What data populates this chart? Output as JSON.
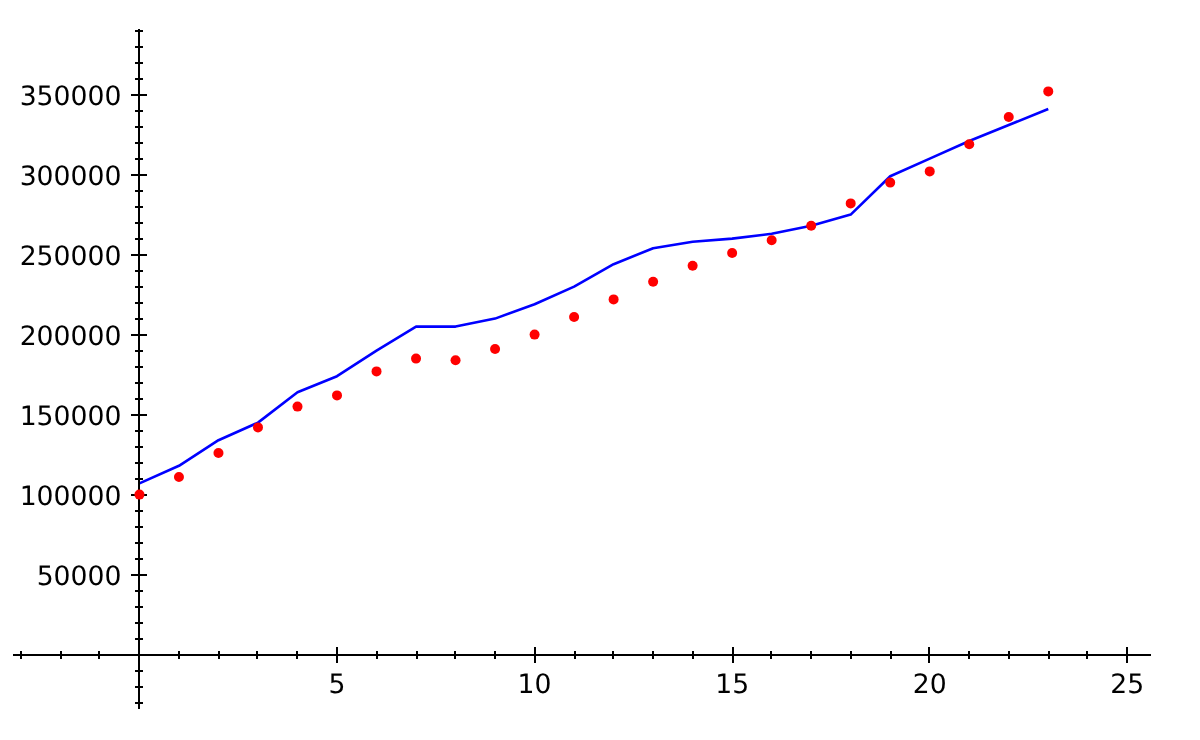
{
  "chart_data": {
    "type": "line",
    "x": [
      0,
      1,
      2,
      3,
      4,
      5,
      6,
      7,
      8,
      9,
      10,
      11,
      12,
      13,
      14,
      15,
      16,
      17,
      18,
      19,
      20,
      21,
      22,
      23
    ],
    "series": [
      {
        "type": "scatter",
        "color": "#ff0000",
        "marker": "circle",
        "values": [
          100000,
          111000,
          126000,
          142000,
          155000,
          162000,
          177000,
          185000,
          184000,
          191000,
          200000,
          211000,
          222000,
          233000,
          243000,
          251000,
          259000,
          268000,
          282000,
          295000,
          302000,
          319000,
          336000,
          352000
        ]
      },
      {
        "color": "#0000ff",
        "values": [
          107000,
          118000,
          134000,
          145000,
          164000,
          174000,
          190000,
          205000,
          205000,
          210000,
          219000,
          230000,
          244000,
          254000,
          258000,
          260000,
          263000,
          268000,
          275000,
          299000,
          310000,
          321000,
          331000,
          341000
        ]
      }
    ],
    "xlim": [
      -3.2,
      25.6
    ],
    "ylim": [
      -34000,
      391000
    ],
    "xticks": [
      5,
      10,
      15,
      20,
      25
    ],
    "yticks": [
      50000,
      100000,
      150000,
      200000,
      250000,
      300000,
      350000
    ],
    "grid": false
  }
}
